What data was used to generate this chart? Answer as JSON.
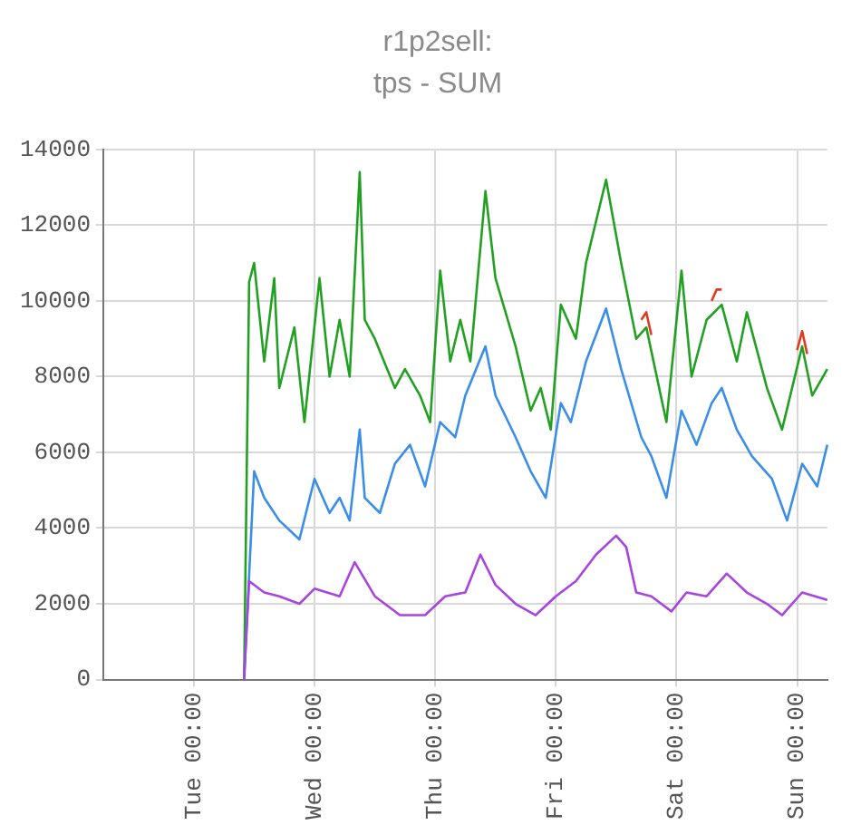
{
  "chart_data": {
    "type": "line",
    "title": "r1p2sell:",
    "subtitle": "tps - SUM",
    "categories": [
      null,
      null,
      null,
      null,
      null,
      null,
      null,
      null,
      null,
      null,
      null,
      null,
      null,
      null,
      null,
      null,
      null,
      null,
      "Tue 00:00",
      null,
      null,
      null,
      null,
      null,
      null,
      null,
      null,
      null,
      null,
      null,
      null,
      null,
      null,
      null,
      null,
      null,
      null,
      null,
      null,
      null,
      null,
      null,
      "Wed 00:00",
      null,
      null,
      null,
      null,
      null,
      null,
      null,
      null,
      null,
      null,
      null,
      null,
      null,
      null,
      null,
      null,
      null,
      null,
      null,
      null,
      null,
      null,
      null,
      "Thu 00:00",
      null,
      null,
      null,
      null,
      null,
      null,
      null,
      null,
      null,
      null,
      null,
      null,
      null,
      null,
      null,
      null,
      null,
      null,
      null,
      null,
      null,
      null,
      null,
      "Fri 00:00",
      null,
      null,
      null,
      null,
      null,
      null,
      null,
      null,
      null,
      null,
      null,
      null,
      null,
      null,
      null,
      null,
      null,
      null,
      null,
      null,
      null,
      null,
      null,
      "Sat 00:00",
      null,
      null,
      null,
      null,
      null,
      null,
      null,
      null,
      null,
      null,
      null,
      null,
      null,
      null,
      null,
      null,
      null,
      null,
      null,
      null,
      null,
      null,
      null,
      "Sun 00:00",
      null,
      null,
      null,
      null,
      null,
      null
    ],
    "ylim": [
      0,
      14000
    ],
    "yticks": [
      0,
      2000,
      4000,
      6000,
      8000,
      10000,
      12000,
      14000
    ],
    "grid": true,
    "marker": "none",
    "line_style": "solid",
    "series": [
      {
        "color": "#22a022",
        "values": [
          null,
          null,
          null,
          null,
          null,
          null,
          null,
          null,
          null,
          null,
          null,
          null,
          null,
          null,
          null,
          null,
          null,
          null,
          null,
          null,
          null,
          null,
          null,
          null,
          null,
          null,
          null,
          null,
          0,
          10500,
          11000,
          null,
          8400,
          null,
          10600,
          7700,
          null,
          null,
          9300,
          null,
          6800,
          null,
          null,
          10600,
          null,
          8000,
          null,
          9500,
          null,
          8000,
          null,
          13400,
          9500,
          null,
          9000,
          null,
          null,
          null,
          7700,
          null,
          8200,
          null,
          null,
          7500,
          null,
          6800,
          null,
          10800,
          null,
          8400,
          null,
          9500,
          null,
          8400,
          null,
          null,
          12900,
          null,
          10600,
          null,
          null,
          null,
          8800,
          null,
          null,
          7100,
          null,
          7700,
          null,
          6600,
          null,
          9900,
          null,
          null,
          9000,
          null,
          11000,
          null,
          null,
          null,
          13200,
          null,
          null,
          11000,
          null,
          null,
          9000,
          null,
          9300,
          null,
          null,
          null,
          6800,
          null,
          null,
          10800,
          null,
          8000,
          null,
          null,
          9500,
          null,
          null,
          9900,
          null,
          null,
          8400,
          null,
          9700,
          null,
          null,
          null,
          7700,
          null,
          null,
          6600,
          null,
          null,
          null,
          8800,
          null,
          7500,
          null,
          null,
          8200
        ]
      },
      {
        "color": "#e03a22",
        "values": [
          null,
          null,
          null,
          null,
          null,
          null,
          null,
          null,
          null,
          null,
          null,
          null,
          null,
          null,
          null,
          null,
          null,
          null,
          null,
          null,
          null,
          null,
          null,
          null,
          null,
          null,
          null,
          null,
          null,
          null,
          null,
          null,
          null,
          null,
          null,
          null,
          null,
          null,
          null,
          null,
          null,
          null,
          null,
          null,
          null,
          null,
          null,
          null,
          null,
          null,
          null,
          null,
          null,
          null,
          null,
          null,
          null,
          null,
          null,
          null,
          null,
          null,
          null,
          null,
          null,
          null,
          null,
          null,
          null,
          null,
          null,
          null,
          null,
          null,
          null,
          null,
          null,
          null,
          null,
          null,
          null,
          null,
          null,
          null,
          null,
          null,
          null,
          null,
          null,
          null,
          null,
          null,
          null,
          null,
          null,
          null,
          null,
          null,
          null,
          null,
          null,
          null,
          null,
          null,
          null,
          null,
          null,
          9500,
          9700,
          9100,
          null,
          null,
          null,
          null,
          null,
          null,
          null,
          null,
          null,
          null,
          null,
          null,
          null,
          null,
          null,
          null,
          null,
          null,
          null,
          null,
          null,
          null,
          null,
          null,
          null,
          null,
          null,
          null,
          null,
          null,
          null,
          null,
          null,
          null,
          null
        ]
      },
      {
        "color": "#e03a22",
        "values": [
          null,
          null,
          null,
          null,
          null,
          null,
          null,
          null,
          null,
          null,
          null,
          null,
          null,
          null,
          null,
          null,
          null,
          null,
          null,
          null,
          null,
          null,
          null,
          null,
          null,
          null,
          null,
          null,
          null,
          null,
          null,
          null,
          null,
          null,
          null,
          null,
          null,
          null,
          null,
          null,
          null,
          null,
          null,
          null,
          null,
          null,
          null,
          null,
          null,
          null,
          null,
          null,
          null,
          null,
          null,
          null,
          null,
          null,
          null,
          null,
          null,
          null,
          null,
          null,
          null,
          null,
          null,
          null,
          null,
          null,
          null,
          null,
          null,
          null,
          null,
          null,
          null,
          null,
          null,
          null,
          null,
          null,
          null,
          null,
          null,
          null,
          null,
          null,
          null,
          null,
          null,
          null,
          null,
          null,
          null,
          null,
          null,
          null,
          null,
          null,
          null,
          null,
          null,
          null,
          null,
          null,
          null,
          null,
          null,
          null,
          null,
          null,
          null,
          null,
          null,
          null,
          null,
          null,
          null,
          null,
          null,
          10000,
          10300,
          10300,
          null,
          null,
          null,
          null,
          null,
          null,
          null,
          null,
          null,
          null,
          null,
          null,
          null,
          null,
          null,
          null,
          null,
          null,
          null,
          null,
          null
        ]
      },
      {
        "color": "#e03a22",
        "values": [
          null,
          null,
          null,
          null,
          null,
          null,
          null,
          null,
          null,
          null,
          null,
          null,
          null,
          null,
          null,
          null,
          null,
          null,
          null,
          null,
          null,
          null,
          null,
          null,
          null,
          null,
          null,
          null,
          null,
          null,
          null,
          null,
          null,
          null,
          null,
          null,
          null,
          null,
          null,
          null,
          null,
          null,
          null,
          null,
          null,
          null,
          null,
          null,
          null,
          null,
          null,
          null,
          null,
          null,
          null,
          null,
          null,
          null,
          null,
          null,
          null,
          null,
          null,
          null,
          null,
          null,
          null,
          null,
          null,
          null,
          null,
          null,
          null,
          null,
          null,
          null,
          null,
          null,
          null,
          null,
          null,
          null,
          null,
          null,
          null,
          null,
          null,
          null,
          null,
          null,
          null,
          null,
          null,
          null,
          null,
          null,
          null,
          null,
          null,
          null,
          null,
          null,
          null,
          null,
          null,
          null,
          null,
          null,
          null,
          null,
          null,
          null,
          null,
          null,
          null,
          null,
          null,
          null,
          null,
          null,
          null,
          null,
          null,
          null,
          null,
          null,
          null,
          null,
          null,
          null,
          null,
          null,
          null,
          null,
          null,
          null,
          null,
          null,
          8700,
          9200,
          8600,
          null,
          null,
          null,
          null
        ]
      },
      {
        "color": "#3a8ee8",
        "values": [
          null,
          null,
          null,
          null,
          null,
          null,
          null,
          null,
          null,
          null,
          null,
          null,
          null,
          null,
          null,
          null,
          null,
          null,
          null,
          null,
          null,
          null,
          null,
          null,
          null,
          null,
          null,
          null,
          0,
          null,
          5500,
          null,
          4800,
          null,
          null,
          4200,
          null,
          null,
          null,
          3700,
          null,
          null,
          5300,
          null,
          null,
          4400,
          null,
          4800,
          null,
          4200,
          null,
          6600,
          4800,
          null,
          null,
          4400,
          null,
          null,
          5700,
          null,
          null,
          6200,
          null,
          null,
          5100,
          null,
          null,
          6800,
          null,
          null,
          6400,
          null,
          7500,
          null,
          null,
          null,
          8800,
          null,
          7500,
          null,
          null,
          null,
          6400,
          null,
          null,
          5500,
          null,
          null,
          4800,
          null,
          null,
          7300,
          null,
          6800,
          null,
          null,
          8400,
          null,
          null,
          null,
          9800,
          null,
          null,
          8200,
          null,
          null,
          null,
          6400,
          null,
          5900,
          null,
          null,
          4800,
          null,
          null,
          7100,
          null,
          null,
          6200,
          null,
          null,
          7300,
          null,
          7700,
          null,
          null,
          6600,
          null,
          null,
          5900,
          null,
          null,
          null,
          5300,
          null,
          null,
          4200,
          null,
          null,
          5700,
          null,
          null,
          5100,
          null,
          6200
        ]
      },
      {
        "color": "#a844e0",
        "values": [
          null,
          null,
          null,
          null,
          null,
          null,
          null,
          null,
          null,
          null,
          null,
          null,
          null,
          null,
          null,
          null,
          null,
          null,
          null,
          null,
          null,
          null,
          null,
          null,
          null,
          null,
          null,
          null,
          0,
          2600,
          null,
          null,
          2300,
          null,
          null,
          2200,
          null,
          null,
          null,
          2000,
          null,
          null,
          2400,
          null,
          null,
          null,
          null,
          2200,
          null,
          null,
          3100,
          null,
          null,
          null,
          2200,
          null,
          null,
          null,
          null,
          1700,
          null,
          null,
          null,
          null,
          1700,
          null,
          null,
          null,
          2200,
          null,
          null,
          null,
          2300,
          null,
          null,
          3300,
          null,
          null,
          2500,
          null,
          null,
          null,
          2000,
          null,
          null,
          null,
          1700,
          null,
          null,
          null,
          2200,
          null,
          null,
          null,
          2600,
          null,
          null,
          null,
          3300,
          null,
          null,
          null,
          3800,
          null,
          3500,
          null,
          2300,
          null,
          null,
          2200,
          null,
          null,
          null,
          1800,
          null,
          null,
          2300,
          null,
          null,
          null,
          2200,
          null,
          null,
          null,
          2800,
          null,
          null,
          null,
          2300,
          null,
          null,
          null,
          2000,
          null,
          null,
          1700,
          null,
          null,
          null,
          2300,
          null,
          null,
          null,
          null,
          2100
        ]
      }
    ]
  }
}
